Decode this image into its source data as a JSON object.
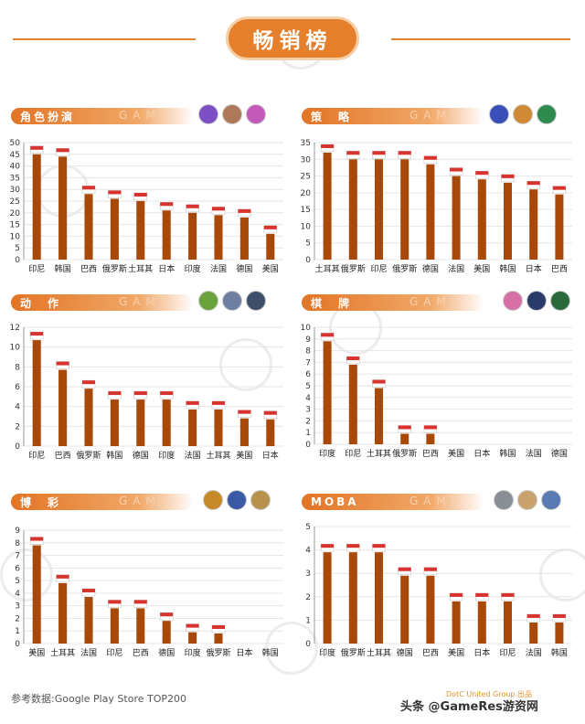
{
  "title": "畅销榜",
  "footer": "参考数据:Google Play Store TOP200",
  "credit": "头条 @GameRes游资网",
  "credit_sub": "DotC United Group 出品",
  "panel_ghost": "GAME",
  "colors": {
    "bar": "#a8490a",
    "accent": "#e57f2b",
    "grid": "#e6e6e6"
  },
  "chart_data": [
    {
      "type": "bar",
      "title": "角色扮演",
      "ylim": [
        0,
        50
      ],
      "yticks": [
        0,
        5,
        10,
        15,
        20,
        25,
        30,
        35,
        40,
        45,
        50
      ],
      "categories": [
        "印尼",
        "韩国",
        "巴西",
        "俄罗斯",
        "土耳其",
        "日本",
        "印度",
        "法国",
        "德国",
        "美国"
      ],
      "values": [
        45,
        44,
        28,
        26,
        25,
        21,
        20,
        19,
        18,
        11
      ]
    },
    {
      "type": "bar",
      "title": "策　略",
      "ylim": [
        0,
        35
      ],
      "yticks": [
        0,
        5,
        10,
        15,
        20,
        25,
        30,
        35
      ],
      "categories": [
        "土耳其",
        "俄罗斯",
        "印尼",
        "俄罗斯",
        "德国",
        "法国",
        "美国",
        "韩国",
        "日本",
        "巴西"
      ],
      "values": [
        32,
        30,
        30,
        30,
        28.5,
        25,
        24,
        23,
        21,
        19.5
      ]
    },
    {
      "type": "bar",
      "title": "动　作",
      "ylim": [
        0,
        12
      ],
      "yticks": [
        0,
        2,
        4,
        6,
        8,
        10,
        12
      ],
      "categories": [
        "印尼",
        "巴西",
        "俄罗斯",
        "韩国",
        "德国",
        "印度",
        "法国",
        "土耳其",
        "美国",
        "日本"
      ],
      "values": [
        10.7,
        7.7,
        5.8,
        4.7,
        4.7,
        4.7,
        3.7,
        3.7,
        2.8,
        2.7
      ]
    },
    {
      "type": "bar",
      "title": "棋　牌",
      "ylim": [
        0,
        10
      ],
      "yticks": [
        0,
        1,
        2,
        3,
        4,
        5,
        6,
        7,
        8,
        9,
        10
      ],
      "categories": [
        "印度",
        "印尼",
        "土耳其",
        "俄罗斯",
        "巴西",
        "美国",
        "日本",
        "韩国",
        "法国",
        "德国"
      ],
      "values": [
        8.8,
        6.8,
        4.8,
        0.9,
        0.9,
        0,
        0,
        0,
        0,
        0
      ]
    },
    {
      "type": "bar",
      "title": "博　彩",
      "ylim": [
        0,
        9
      ],
      "yticks": [
        0,
        1,
        2,
        3,
        4,
        5,
        6,
        7,
        8,
        9
      ],
      "categories": [
        "美国",
        "土耳其",
        "法国",
        "印尼",
        "巴西",
        "德国",
        "印度",
        "俄罗斯",
        "日本",
        "韩国"
      ],
      "values": [
        7.8,
        4.8,
        3.7,
        2.8,
        2.8,
        1.8,
        0.9,
        0.8,
        0,
        0
      ]
    },
    {
      "type": "bar",
      "title": "MOBA",
      "ylim": [
        0,
        5
      ],
      "yticks": [
        0,
        1,
        2,
        3,
        4,
        5
      ],
      "categories": [
        "印度",
        "俄罗斯",
        "土耳其",
        "德国",
        "巴西",
        "美国",
        "日本",
        "印尼",
        "法国",
        "韩国"
      ],
      "values": [
        3.9,
        3.9,
        3.9,
        2.9,
        2.9,
        1.8,
        1.8,
        1.8,
        0.9,
        0.9
      ]
    }
  ]
}
